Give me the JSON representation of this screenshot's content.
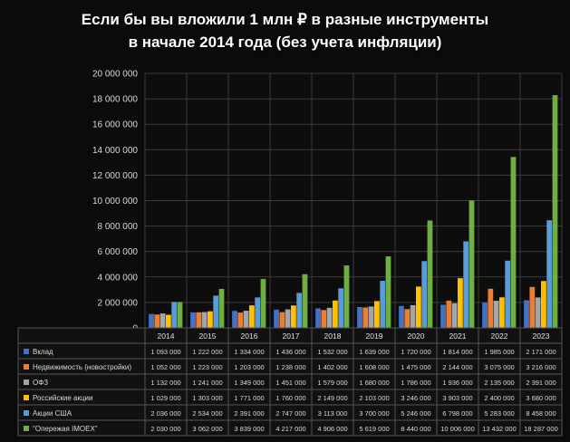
{
  "header": {
    "title_line1": "Если бы вы вложили 1 млн ₽ в разные инструменты",
    "title_line2": "в начале 2014 года (без учета инфляции)"
  },
  "chart_data": {
    "type": "bar",
    "title": "Если бы вы вложили 1 млн ₽ в разные инструменты в начале 2014 года (без учета инфляции)",
    "categories": [
      "2014",
      "2015",
      "2016",
      "2017",
      "2018",
      "2019",
      "2020",
      "2021",
      "2022",
      "2023"
    ],
    "ylim": [
      0,
      20000000
    ],
    "yticks": [
      "0",
      "2 000 000",
      "4 000 000",
      "6 000 000",
      "8 000 000",
      "10 000 000",
      "12 000 000",
      "14 000 000",
      "16 000 000",
      "18 000 000",
      "20 000 000"
    ],
    "grid": true,
    "legend_placement": "data-table",
    "series": [
      {
        "name": "Вклад",
        "color": "#4472c4",
        "values": [
          1093000,
          1222000,
          1334000,
          1436000,
          1532000,
          1639000,
          1720000,
          1814000,
          1985000,
          2171000
        ],
        "labels": [
          "1 093 000",
          "1 222 000",
          "1 334 000",
          "1 436 000",
          "1 532 000",
          "1 639 000",
          "1 720 000",
          "1 814 000",
          "1 985 000",
          "2 171 000"
        ]
      },
      {
        "name": "Недвижимость (новостройки)",
        "color": "#ed7d31",
        "values": [
          1052000,
          1223000,
          1203000,
          1238000,
          1402000,
          1608000,
          1475000,
          2144000,
          3075000,
          3216000
        ],
        "labels": [
          "1 052 000",
          "1 223 000",
          "1 203 000",
          "1 238 000",
          "1 402 000",
          "1 608 000",
          "1 475 000",
          "2 144 000",
          "3 075 000",
          "3 216 000"
        ]
      },
      {
        "name": "ОФЗ",
        "color": "#a5a5a5",
        "values": [
          1132000,
          1241000,
          1349000,
          1451000,
          1579000,
          1680000,
          1786000,
          1936000,
          2135000,
          2391000
        ],
        "labels": [
          "1 132 000",
          "1 241 000",
          "1 349 000",
          "1 451 000",
          "1 579 000",
          "1 680 000",
          "1 786 000",
          "1 936 000",
          "2 135 000",
          "2 391 000"
        ]
      },
      {
        "name": "Российские акции",
        "color": "#ffc000",
        "values": [
          1029000,
          1303000,
          1771000,
          1760000,
          2149000,
          2103000,
          3246000,
          3903000,
          2400000,
          3680000
        ],
        "labels": [
          "1 029 000",
          "1 303 000",
          "1 771 000",
          "1 760 000",
          "2 149 000",
          "2 103 000",
          "3 246 000",
          "3 903 000",
          "2 400 000",
          "3 680 000"
        ]
      },
      {
        "name": "Акции США",
        "color": "#5b9bd5",
        "values": [
          2036000,
          2534000,
          2391000,
          2747000,
          3113000,
          3700000,
          5246000,
          6798000,
          5283000,
          8458000
        ],
        "labels": [
          "2 036 000",
          "2 534 000",
          "2 391 000",
          "2 747 000",
          "3 113 000",
          "3 700 000",
          "5 246 000",
          "6 798 000",
          "5 283 000",
          "8 458 000"
        ]
      },
      {
        "name": "\"Опережая IMOEX\"",
        "color": "#70ad47",
        "values": [
          2030000,
          3062000,
          3839000,
          4217000,
          4906000,
          5619000,
          8440000,
          10006000,
          13432000,
          18287000
        ],
        "labels": [
          "2 030 000",
          "3 062 000",
          "3 839 000",
          "4 217 000",
          "4 906 000",
          "5 619 000",
          "8 440 000",
          "10 006 000",
          "13 432 000",
          "18 287 000"
        ]
      }
    ]
  }
}
